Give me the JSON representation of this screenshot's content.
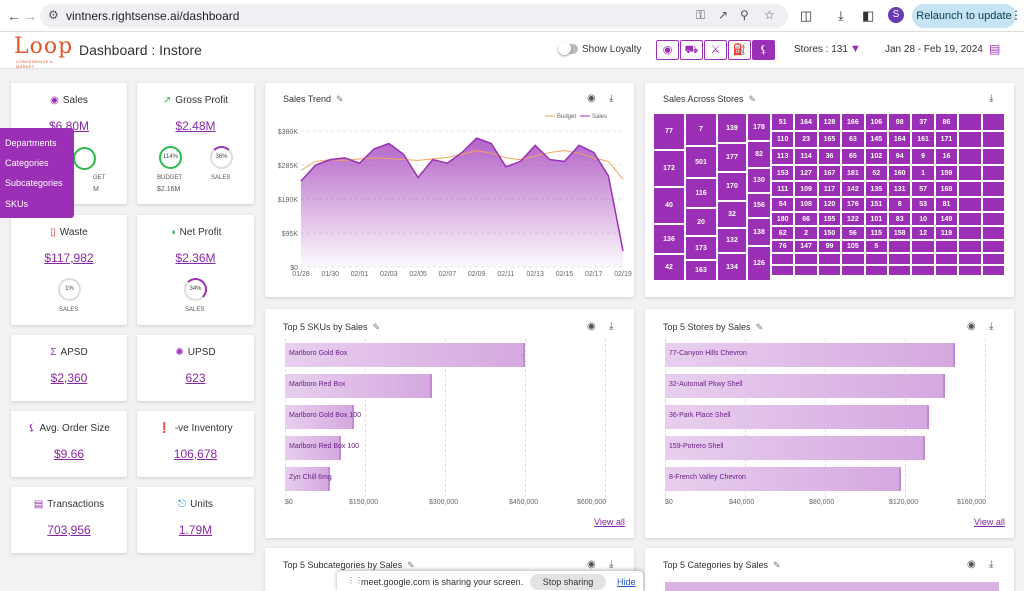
{
  "browser": {
    "url": "vintners.rightsense.ai/dashboard",
    "relaunch_label": "Relaunch to update",
    "profile_initial": "S"
  },
  "header": {
    "logo_text": "Loop",
    "logo_sub": "CONVENIENCE & MARKET",
    "title": "Dashboard : Instore",
    "loyalty_label": "Show Loyalty",
    "stores_label": "Stores : 131",
    "date_range": "Jan 28 - Feb 19, 2024"
  },
  "menu": [
    "Departments",
    "Categories",
    "Subcategories",
    "SKUs"
  ],
  "kpis": {
    "sales": {
      "title": "Sales",
      "value": "$6.80M",
      "b1": "GET",
      "b2": "M"
    },
    "gross_profit": {
      "title": "Gross Profit",
      "value": "$2.48M",
      "budget_pct": "114%",
      "sales_pct": "36%",
      "budget_label": "BUDGET",
      "sales_label": "SALES",
      "budget_value": "$2.16M"
    },
    "waste": {
      "title": "Waste",
      "value": "$117,982",
      "pct": "1%",
      "label": "SALES"
    },
    "net_profit": {
      "title": "Net Profit",
      "value": "$2.36M",
      "pct": "34%",
      "label": "SALES"
    },
    "apsd": {
      "title": "APSD",
      "value": "$2,360"
    },
    "upsd": {
      "title": "UPSD",
      "value": "623"
    },
    "aos": {
      "title": "Avg. Order Size",
      "value": "$9.66"
    },
    "inventory": {
      "title": "-ve Inventory",
      "value": "106,678"
    },
    "transactions": {
      "title": "Transactions",
      "value": "703,956"
    },
    "units": {
      "title": "Units",
      "value": "1.79M"
    }
  },
  "sales_trend": {
    "title": "Sales Trend",
    "legend_budget": "Budget",
    "legend_sales": "Sales",
    "colors": {
      "sales": "#9b2fb5",
      "budget": "#f0a65c"
    }
  },
  "treemap": {
    "title": "Sales Across Stores"
  },
  "top_skus": {
    "title": "Top 5 SKUs by Sales",
    "view_all": "View all"
  },
  "top_stores": {
    "title": "Top 5 Stores by Sales",
    "view_all": "View all"
  },
  "top_subcats": {
    "title": "Top 5 Subcategories by Sales"
  },
  "top_cats": {
    "title": "Top 5 Categories by Sales"
  },
  "share_bar": {
    "text": "meet.google.com is sharing your screen.",
    "stop": "Stop sharing",
    "hide": "Hide"
  },
  "chart_data": [
    {
      "type": "line",
      "title": "Sales Trend",
      "x": [
        "01/28",
        "01/29",
        "01/30",
        "01/31",
        "02/01",
        "02/02",
        "02/03",
        "02/04",
        "02/05",
        "02/06",
        "02/07",
        "02/08",
        "02/09",
        "02/10",
        "02/11",
        "02/12",
        "02/13",
        "02/14",
        "02/15",
        "02/16",
        "02/17",
        "02/18",
        "02/19"
      ],
      "x_tick_labels": [
        "01/28",
        "01/30",
        "02/01",
        "02/03",
        "02/05",
        "02/07",
        "02/09",
        "02/11",
        "02/13",
        "02/15",
        "02/17",
        "02/19"
      ],
      "y_ticks": [
        "$0",
        "$95K",
        "$190K",
        "$285K",
        "$380K"
      ],
      "ylim": [
        0,
        380000
      ],
      "series": [
        {
          "name": "Budget",
          "values": [
            270000,
            295000,
            300000,
            298000,
            302000,
            305000,
            303000,
            300000,
            298000,
            302000,
            306000,
            315000,
            325000,
            318000,
            305000,
            300000,
            310000,
            320000,
            325000,
            318000,
            305000,
            295000,
            245000
          ]
        },
        {
          "name": "Sales",
          "values": [
            240000,
            285000,
            300000,
            305000,
            290000,
            330000,
            345000,
            315000,
            250000,
            300000,
            290000,
            320000,
            360000,
            345000,
            280000,
            295000,
            340000,
            300000,
            295000,
            340000,
            320000,
            255000,
            45000
          ]
        }
      ]
    },
    {
      "type": "heatmap",
      "title": "Sales Across Stores",
      "labels": [
        "77",
        "172",
        "40",
        "136",
        "42",
        "7",
        "501",
        "116",
        "20",
        "173",
        "163",
        "139",
        "177",
        "170",
        "32",
        "132",
        "134",
        "178",
        "82",
        "130",
        "156",
        "138",
        "126",
        "51",
        "164",
        "128",
        "166",
        "106",
        "98",
        "37",
        "86",
        "110",
        "23",
        "165",
        "63",
        "145",
        "164",
        "161",
        "171",
        "113",
        "114",
        "36",
        "65",
        "102",
        "94",
        "9",
        "16",
        "153",
        "127",
        "167",
        "181",
        "52",
        "160",
        "1",
        "159",
        "111",
        "109",
        "117",
        "142",
        "135",
        "131",
        "57",
        "168",
        "54",
        "108",
        "120",
        "176",
        "151",
        "8",
        "53",
        "81",
        "180",
        "66",
        "155",
        "122",
        "101",
        "83",
        "10",
        "149",
        "62",
        "2",
        "150",
        "56",
        "115",
        "158",
        "12",
        "119",
        "76",
        "147",
        "99",
        "105",
        "5"
      ]
    },
    {
      "type": "bar",
      "title": "Top 5 SKUs by Sales",
      "categories": [
        "Marlboro Gold Box",
        "Marlboro Red Box",
        "Marlboro Gold Box 100",
        "Marlboro Red Box 100",
        "Zyn Chill 6mg"
      ],
      "values": [
        450000,
        275000,
        130000,
        105000,
        85000
      ],
      "x_ticks": [
        "$0",
        "$150,000",
        "$300,000",
        "$450,000",
        "$600,000"
      ],
      "xlim": [
        0,
        600000
      ]
    },
    {
      "type": "bar",
      "title": "Top 5 Stores by Sales",
      "categories": [
        "77-Canyon Hills Chevron",
        "32-Automall Pkwy Shell",
        "36-Park Place Shell",
        "159-Potrero Shell",
        "8-French Valley Chevron"
      ],
      "values": [
        145000,
        140000,
        132000,
        130000,
        118000
      ],
      "x_ticks": [
        "$0",
        "$40,000",
        "$80,000",
        "$120,000",
        "$160,000"
      ],
      "xlim": [
        0,
        160000
      ]
    }
  ]
}
